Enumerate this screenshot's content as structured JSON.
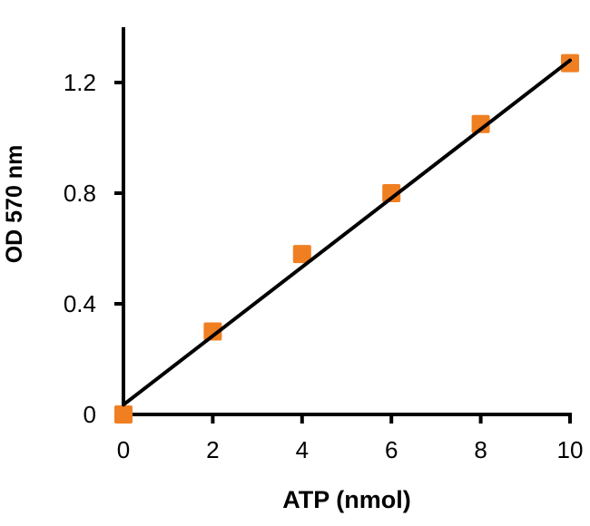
{
  "chart_data": {
    "type": "scatter",
    "title": "",
    "xlabel": "ATP (nmol)",
    "ylabel": "OD 570 nm",
    "xlim": [
      0,
      10
    ],
    "ylim": [
      0,
      1.4
    ],
    "xticks": [
      0,
      2,
      4,
      6,
      8,
      10
    ],
    "xtick_labels": [
      "0",
      "2",
      "4",
      "6",
      "8",
      "10"
    ],
    "yticks": [
      0,
      0.4,
      0.8,
      1.2
    ],
    "ytick_labels": [
      "0",
      "0.4",
      "0.8",
      "1.2"
    ],
    "grid": false,
    "series": [
      {
        "x": [
          0,
          2,
          4,
          6,
          8,
          10
        ],
        "y": [
          0.0,
          0.3,
          0.58,
          0.8,
          1.05,
          1.27
        ],
        "marker": "square",
        "color": "#F07F22"
      }
    ],
    "trendline": {
      "type": "linear",
      "x": [
        0,
        10
      ],
      "y": [
        0.035,
        1.28
      ],
      "color": "#000000"
    }
  }
}
